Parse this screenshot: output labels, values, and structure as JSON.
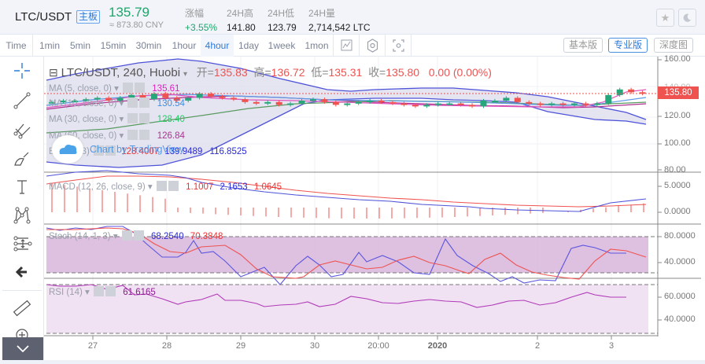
{
  "header": {
    "pair": "LTC/USDT",
    "badge": "主板",
    "last_price": "135.79",
    "cny": "≈ 873.80 CNY",
    "stats": [
      {
        "label": "涨幅",
        "value": "+3.55%"
      },
      {
        "label": "24H高",
        "value": "141.80"
      },
      {
        "label": "24H低",
        "value": "123.79"
      },
      {
        "label": "24H量",
        "value": "2,714,542 LTC"
      }
    ],
    "favorite_icon": "star-icon",
    "theme_icon": "moon-icon"
  },
  "toolbar": {
    "intervals": [
      "Time",
      "1min",
      "5min",
      "15min",
      "30min",
      "1hour",
      "4hour",
      "1day",
      "1week",
      "1mon"
    ],
    "active_interval": "4hour",
    "icons": [
      "indicator-icon",
      "settings-hex-icon",
      "fullscreen-icon"
    ],
    "views": [
      "基本版",
      "专业版",
      "深度图"
    ],
    "active_view": "专业版"
  },
  "sidebar": {
    "tools": [
      "crosshair-icon",
      "trend-line-icon",
      "pitchfork-icon",
      "brush-icon",
      "text-icon",
      "pattern-icon",
      "measure-icon",
      "back-arrow-icon",
      "ruler-icon",
      "zoom-in-icon"
    ],
    "collapse_icon": "chevron-down-icon"
  },
  "main": {
    "symbol_title": "LTC/USDT, 240, Huobi",
    "ohlc": {
      "open_label": "开=",
      "open": "135.83",
      "high_label": "高=",
      "high": "136.72",
      "low_label": "低=",
      "low": "135.31",
      "close_label": "收=",
      "close": "135.80",
      "change": "0.00 (0.00%)"
    },
    "indicators": [
      {
        "label": "MA (5, close, 0)",
        "value": "135.61",
        "color": "#e020c0"
      },
      {
        "label": "MA (10, close, 0)",
        "value": "130.54",
        "color": "#3a8ee6"
      },
      {
        "label": "MA (30, close, 0)",
        "value": "128.40",
        "color": "#22cc66"
      },
      {
        "label": "MA (60, close, 0)",
        "value": "126.84",
        "color": "#b03090"
      },
      {
        "label": "BB (20, 3)",
        "values": [
          "128.4007",
          "139.9489",
          "116.8525"
        ]
      }
    ],
    "watermark": "Chart by TradingView",
    "current_price_tag": "135.80",
    "price_axis": [
      "160.00",
      "140.00",
      "120.00",
      "100.00",
      "80.00"
    ]
  },
  "macd": {
    "label": "MACD (12, 26, close, 9)",
    "values": [
      "1.1007",
      "2.1653",
      "1.0645"
    ],
    "axis": [
      "5.0000",
      "0.0000"
    ]
  },
  "stoch": {
    "label": "Stoch (14, 1, 3)",
    "values": [
      "68.2540",
      "70.3848"
    ],
    "axis": [
      "80.0000",
      "40.0000"
    ]
  },
  "rsi": {
    "label": "RSI (14)",
    "value": "61.6165",
    "axis": [
      "60.0000",
      "40.0000"
    ]
  },
  "x_axis": [
    "27",
    "28",
    "29",
    "30",
    "20:00",
    "2020",
    "2",
    "3"
  ],
  "chart_data": [
    {
      "type": "candlestick",
      "title": "LTC/USDT, 240, Huobi",
      "ylim": [
        80,
        160
      ],
      "y_ticks": [
        160,
        140,
        120,
        100,
        80
      ],
      "x_ticks": [
        "27",
        "28",
        "29",
        "30",
        "20:00",
        "2020",
        "2",
        "3"
      ],
      "last_close": 135.8,
      "close_approx": [
        130,
        131,
        131,
        132,
        133,
        131,
        133,
        135,
        132,
        136,
        133,
        131,
        133,
        136,
        134,
        133,
        132,
        130,
        129,
        130,
        128,
        129,
        131,
        132,
        130,
        128,
        129,
        130,
        131,
        130,
        129,
        128,
        127,
        128,
        129,
        129,
        128,
        127,
        131,
        131,
        133,
        130,
        129,
        128,
        129,
        128,
        129,
        128,
        129,
        135,
        139,
        137,
        136
      ],
      "series": [
        {
          "name": "MA 5",
          "last": 135.61
        },
        {
          "name": "MA 10",
          "last": 130.54
        },
        {
          "name": "MA 30",
          "last": 128.4
        },
        {
          "name": "MA 60",
          "last": 126.84
        },
        {
          "name": "BB basis",
          "last": 128.4007
        },
        {
          "name": "BB upper",
          "last": 139.9489
        },
        {
          "name": "BB lower",
          "last": 116.8525
        }
      ]
    },
    {
      "type": "line",
      "title": "MACD (12, 26, close, 9)",
      "y_ticks": [
        5,
        0
      ],
      "series": [
        {
          "name": "Histogram",
          "last": 1.1007
        },
        {
          "name": "MACD",
          "last": 2.1653
        },
        {
          "name": "Signal",
          "last": 1.0645
        }
      ]
    },
    {
      "type": "line",
      "title": "Stoch (14, 1, 3)",
      "y_ticks": [
        80,
        40
      ],
      "series": [
        {
          "name": "%K",
          "last": 68.254
        },
        {
          "name": "%D",
          "last": 70.3848
        }
      ]
    },
    {
      "type": "line",
      "title": "RSI (14)",
      "y_ticks": [
        60,
        40
      ],
      "series": [
        {
          "name": "RSI",
          "last": 61.6165
        }
      ]
    }
  ]
}
